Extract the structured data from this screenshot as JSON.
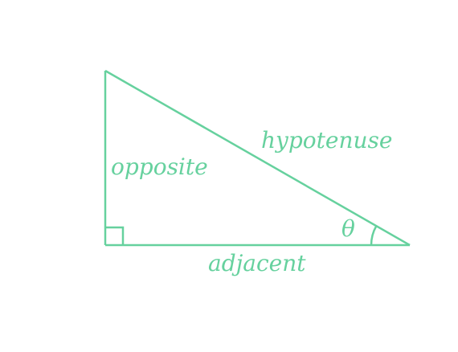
{
  "diagram": {
    "labels": {
      "opposite": "opposite",
      "hypotenuse": "hypotenuse",
      "adjacent": "adjacent",
      "angle": "θ"
    },
    "colors": {
      "stroke": "#66d19e",
      "text": "#66d19e",
      "background": "#ffffff"
    }
  }
}
